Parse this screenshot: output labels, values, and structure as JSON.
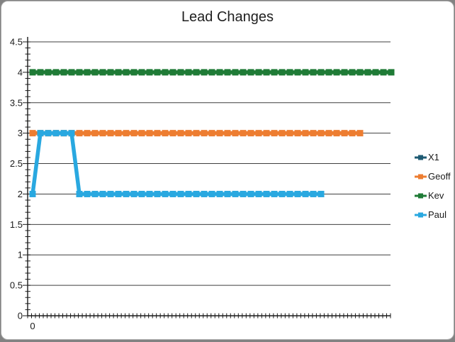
{
  "chart_data": {
    "type": "line",
    "title": "Lead Changes",
    "legend_position": "right",
    "grid": true,
    "ylim": [
      0,
      4.5
    ],
    "ytick_step": 0.5,
    "ytick_labels": [
      "0",
      "0.5",
      "1",
      "1.5",
      "2",
      "2.5",
      "3",
      "3.5",
      "4",
      "4.5"
    ],
    "xtick_visible_label": "0",
    "colors": {
      "axis": "#1a1a1a",
      "grid": "#3f3f3f",
      "text": "#1a1a1a"
    },
    "series": [
      {
        "name": "X1",
        "color": "#1f5b73",
        "line_visible_in_plot": false,
        "values": []
      },
      {
        "name": "Geoff",
        "color": "#ed7d31",
        "line_visible_in_plot": true,
        "values": [
          3,
          3,
          3,
          3,
          3,
          3,
          3,
          3,
          3,
          3,
          3,
          3,
          3,
          3,
          3,
          3,
          3,
          3,
          3,
          3,
          3,
          3,
          3,
          3,
          3,
          3,
          3,
          3,
          3,
          3,
          3,
          3,
          3,
          3,
          3,
          3,
          3,
          3,
          3,
          3,
          3,
          3,
          3
        ]
      },
      {
        "name": "Kev",
        "color": "#1f7b36",
        "line_visible_in_plot": true,
        "values": [
          4,
          4,
          4,
          4,
          4,
          4,
          4,
          4,
          4,
          4,
          4,
          4,
          4,
          4,
          4,
          4,
          4,
          4,
          4,
          4,
          4,
          4,
          4,
          4,
          4,
          4,
          4,
          4,
          4,
          4,
          4,
          4,
          4,
          4,
          4,
          4,
          4,
          4,
          4,
          4,
          4,
          4,
          4,
          4,
          4,
          4,
          4
        ]
      },
      {
        "name": "Paul",
        "color": "#29a8e0",
        "line_visible_in_plot": true,
        "values": [
          2,
          3,
          3,
          3,
          3,
          3,
          2,
          2,
          2,
          2,
          2,
          2,
          2,
          2,
          2,
          2,
          2,
          2,
          2,
          2,
          2,
          2,
          2,
          2,
          2,
          2,
          2,
          2,
          2,
          2,
          2,
          2,
          2,
          2,
          2,
          2,
          2,
          2
        ]
      }
    ]
  }
}
